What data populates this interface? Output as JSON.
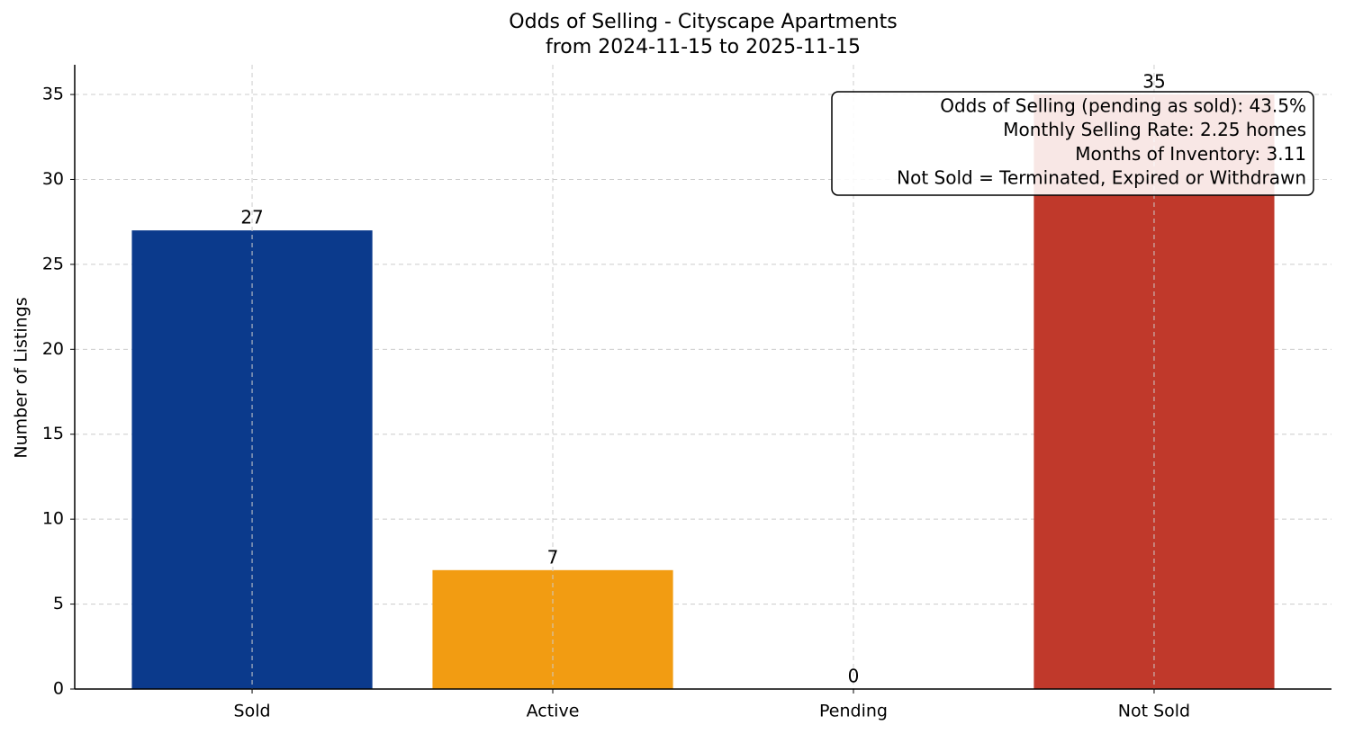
{
  "chart_data": {
    "type": "bar",
    "title": "Odds of Selling - Cityscape Apartments",
    "subtitle": "from 2024-11-15 to 2025-11-15",
    "y_label": "Number of Listings",
    "categories": [
      "Sold",
      "Active",
      "Pending",
      "Not Sold"
    ],
    "values": [
      27,
      7,
      0,
      35
    ],
    "colors": [
      "#0b3a8c",
      "#f29c12",
      "#2e8b57",
      "#c0392b"
    ],
    "ylim": [
      0,
      36.75
    ],
    "yticks": [
      0,
      5,
      10,
      15,
      20,
      25,
      30,
      35
    ],
    "grid": true,
    "annotation": [
      "Odds of Selling (pending as sold): 43.5%",
      "Monthly Selling Rate: 2.25 homes",
      "Months of Inventory: 3.11",
      "Not Sold = Terminated, Expired or Withdrawn"
    ]
  }
}
